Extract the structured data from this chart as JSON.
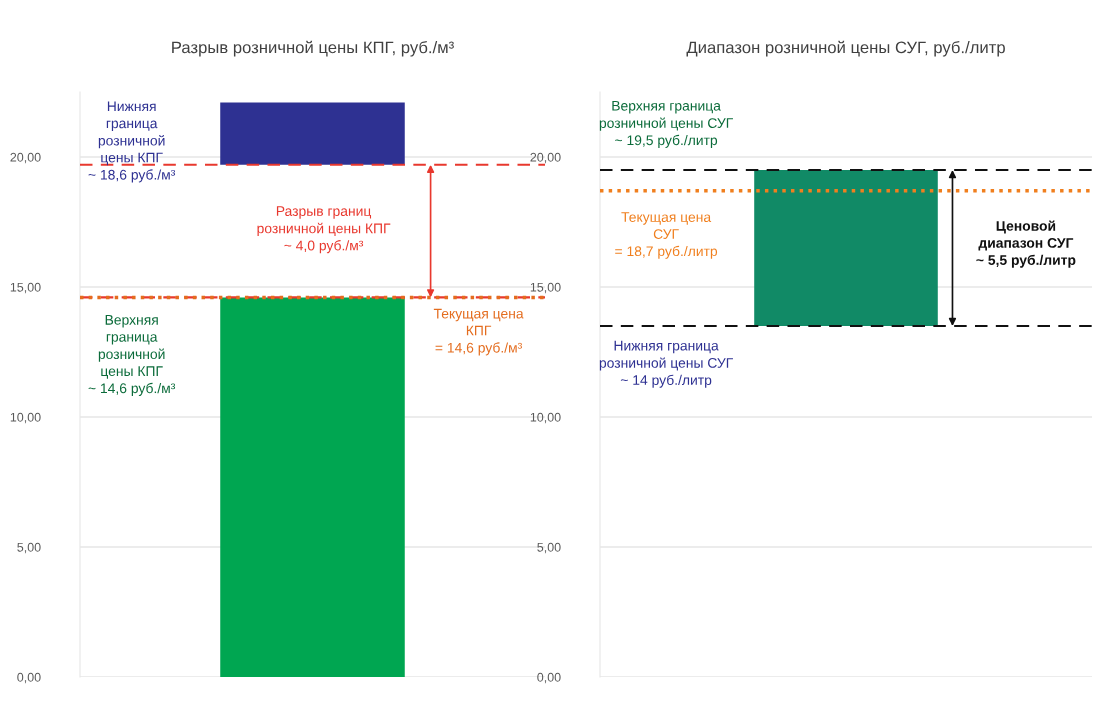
{
  "chart_data": [
    {
      "type": "bar",
      "title": "Разрыв розничной цены КПГ, руб./м³",
      "categories": [
        null
      ],
      "values": [
        14.6
      ],
      "color": "#00a651",
      "bands": [
        {
          "axis": "y",
          "from": 19.7,
          "to": 22.1,
          "color": "#2e3192"
        }
      ],
      "ylim": [
        0,
        22.5
      ],
      "yticks": [
        {
          "value": 0,
          "label": "0,00"
        },
        {
          "value": 5,
          "label": "5,00"
        },
        {
          "value": 10,
          "label": "10,00"
        },
        {
          "value": 15,
          "label": "15,00"
        },
        {
          "value": 20,
          "label": "20,00"
        }
      ],
      "grid": "y",
      "ref_lines": [
        {
          "axis": "y",
          "value": 19.7,
          "color": "#e8382e",
          "line_style": "dashed"
        },
        {
          "axis": "y",
          "value": 14.6,
          "color": "#e8382e",
          "line_style": "dashed"
        },
        {
          "axis": "y",
          "value": 14.6,
          "color": "#e46c1e",
          "line_style": "dotted"
        }
      ],
      "annotations": [
        "Нижняя\nграница\nрозничной\nцены КПГ\n~ 18,6 руб./м³",
        "Разрыв границ\nрозничной цены КПГ\n~ 4,0 руб./м³",
        "Верхняя\nграница\nрозничной\nцены КПГ\n~ 14,6 руб./м³",
        "Текущая цена\nКПГ\n= 14,6 руб./м³"
      ]
    },
    {
      "type": "bar",
      "title": "Диапазон розничной цены СУГ, руб./литр",
      "categories": [
        null
      ],
      "values": [
        null
      ],
      "bands": [
        {
          "axis": "y",
          "from": 13.5,
          "to": 19.5,
          "color": "#118a66"
        }
      ],
      "ylim": [
        0,
        22.5
      ],
      "yticks": [
        {
          "value": 0,
          "label": "0,00"
        },
        {
          "value": 5,
          "label": "5,00"
        },
        {
          "value": 10,
          "label": "10,00"
        },
        {
          "value": 15,
          "label": "15,00"
        },
        {
          "value": 20,
          "label": "20,00"
        }
      ],
      "grid": "y",
      "ref_lines": [
        {
          "axis": "y",
          "value": 19.5,
          "color": "#111111",
          "line_style": "dashed"
        },
        {
          "axis": "y",
          "value": 13.5,
          "color": "#111111",
          "line_style": "dashed"
        },
        {
          "axis": "y",
          "value": 18.7,
          "color": "#f07f1e",
          "line_style": "dotted"
        }
      ],
      "annotations": [
        "Верхняя граница\nрозничной цены СУГ\n~ 19,5 руб./литр",
        "Текущая цена\nСУГ\n= 18,7 руб./литр",
        "Нижняя граница\nрозничной цены СУГ\n~ 14 руб./литр",
        "Ценовой\nдиапазон СУГ\n~ 5,5 руб./литр"
      ]
    }
  ]
}
